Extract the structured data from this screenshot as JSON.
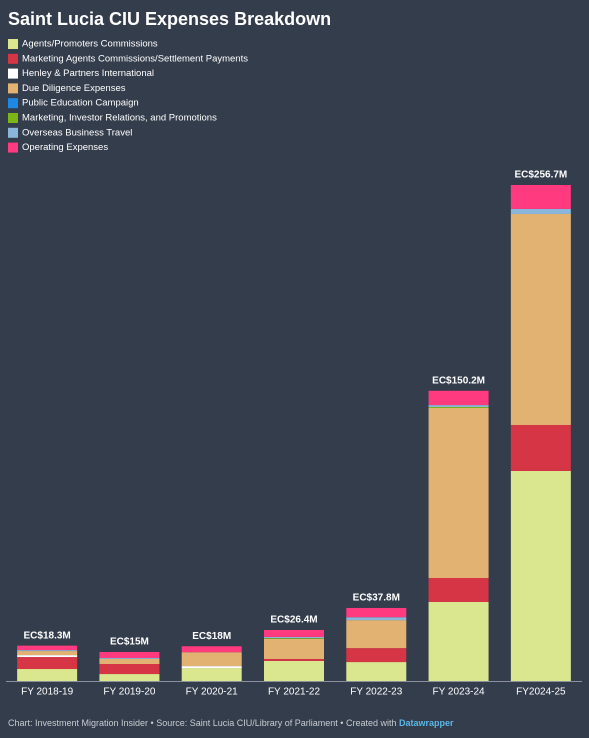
{
  "chart_data": {
    "type": "stacked_bar",
    "title": "Saint Lucia CIU Expenses Breakdown",
    "categories": [
      "FY 2018-19",
      "FY 2019-20",
      "FY 2020-21",
      "FY 2021-22",
      "FY 2022-23",
      "FY 2023-24",
      "FY2024-25"
    ],
    "series": [
      {
        "name": "Agents/Promoters Commissions",
        "color": "#dbe78f",
        "values": [
          6.2,
          3.6,
          6.7,
          10.4,
          9.8,
          40.9,
          108.7
        ]
      },
      {
        "name": "Marketing Agents Commissions/Settlement Payments",
        "color": "#d63545",
        "values": [
          6.2,
          5.2,
          0,
          1,
          7.2,
          12.4,
          23.8
        ]
      },
      {
        "name": "Henley & Partners International",
        "color": "#ffffff",
        "values": [
          1,
          0,
          1,
          0,
          0,
          0,
          0
        ]
      },
      {
        "name": "Due Diligence Expenses",
        "color": "#e2b273",
        "values": [
          2.1,
          2.6,
          7.2,
          10.4,
          14.5,
          88.0,
          109.2
        ]
      },
      {
        "name": "Public Education Campaign",
        "color": "#1e88e5",
        "values": [
          0,
          0,
          0,
          0,
          0,
          0,
          0
        ]
      },
      {
        "name": "Marketing, Investor Relations, and Promotions",
        "color": "#7cb518",
        "values": [
          0,
          0,
          0,
          0.4,
          0,
          0.5,
          0
        ]
      },
      {
        "name": "Overseas Business Travel",
        "color": "#8ab7d9",
        "values": [
          0.5,
          0.5,
          0,
          0.6,
          1.5,
          1.0,
          2.6
        ]
      },
      {
        "name": "Operating Expenses",
        "color": "#ff3a7f",
        "values": [
          2.3,
          3.1,
          3.1,
          3.6,
          4.8,
          7.4,
          12.4
        ]
      }
    ],
    "total_values": [
      18.3,
      15,
      18,
      26.4,
      37.8,
      150.2,
      256.7
    ],
    "total_labels": [
      "EC$18.3M",
      "EC$15M",
      "EC$18M",
      "EC$26.4M",
      "EC$37.8M",
      "EC$150.2M",
      "EC$256.7M"
    ],
    "footer": "Chart: Investment Migration Insider • Source: Saint Lucia CIU/Library of Parliament • Created with ",
    "footer_link": "Datawrapper"
  }
}
